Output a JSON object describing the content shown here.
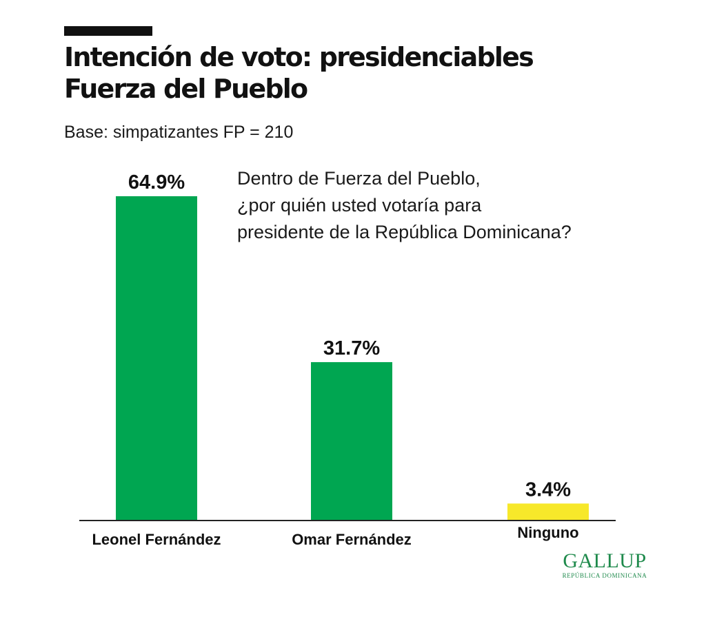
{
  "header": {
    "title_line1": "Intención de voto: presidenciables",
    "title_line2": "Fuerza del Pueblo",
    "base": "Base: simpatizantes FP = 210"
  },
  "question": {
    "line1": "Dentro de Fuerza del Pueblo,",
    "line2": "¿por quién usted votaría para",
    "line3": "presidente de la República Dominicana?"
  },
  "chart_data": {
    "type": "bar",
    "title": "Intención de voto: presidenciables Fuerza del Pueblo",
    "subtitle": "Base: simpatizantes FP = 210",
    "categories": [
      "Leonel Fernández",
      "Omar Fernández",
      "Ninguno"
    ],
    "values": [
      64.9,
      31.7,
      3.4
    ],
    "value_labels": [
      "64.9%",
      "31.7%",
      "3.4%"
    ],
    "colors": [
      "#00a651",
      "#00a651",
      "#f7e82a"
    ],
    "ylim": [
      0,
      70
    ],
    "xlabel": "",
    "ylabel": "",
    "grid": false,
    "legend": "none"
  },
  "logo": {
    "name": "GALLUP",
    "subtitle": "REPÚBLICA DOMINICANA",
    "color": "#1f8a4c"
  }
}
